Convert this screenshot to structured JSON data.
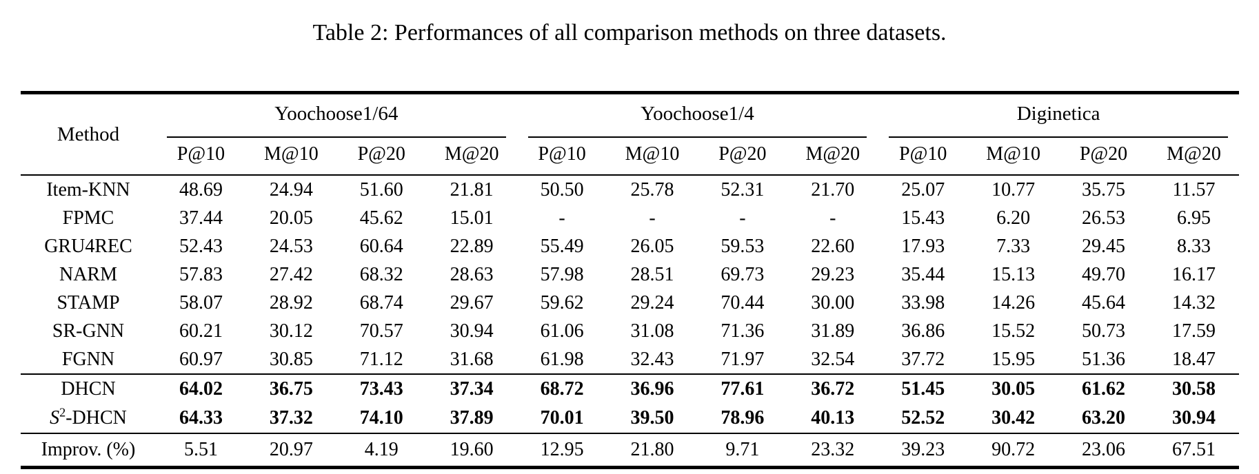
{
  "title": "Table 2: Performances of all comparison methods on three datasets.",
  "table": {
    "method_header": "Method",
    "groups": [
      {
        "label": "Yoochoose1/64"
      },
      {
        "label": "Yoochoose1/4"
      },
      {
        "label": "Diginetica"
      }
    ],
    "metric_headers": [
      "P@10",
      "M@10",
      "P@20",
      "M@20",
      "P@10",
      "M@10",
      "P@20",
      "M@20",
      "P@10",
      "M@10",
      "P@20",
      "M@20"
    ],
    "rows": [
      {
        "method": "Item-KNN",
        "values": [
          "48.69",
          "24.94",
          "51.60",
          "21.81",
          "50.50",
          "25.78",
          "52.31",
          "21.70",
          "25.07",
          "10.77",
          "35.75",
          "11.57"
        ]
      },
      {
        "method": "FPMC",
        "values": [
          "37.44",
          "20.05",
          "45.62",
          "15.01",
          "-",
          "-",
          "-",
          "-",
          "15.43",
          "6.20",
          "26.53",
          "6.95"
        ]
      },
      {
        "method": "GRU4REC",
        "values": [
          "52.43",
          "24.53",
          "60.64",
          "22.89",
          "55.49",
          "26.05",
          "59.53",
          "22.60",
          "17.93",
          "7.33",
          "29.45",
          "8.33"
        ]
      },
      {
        "method": "NARM",
        "values": [
          "57.83",
          "27.42",
          "68.32",
          "28.63",
          "57.98",
          "28.51",
          "69.73",
          "29.23",
          "35.44",
          "15.13",
          "49.70",
          "16.17"
        ]
      },
      {
        "method": "STAMP",
        "values": [
          "58.07",
          "28.92",
          "68.74",
          "29.67",
          "59.62",
          "29.24",
          "70.44",
          "30.00",
          "33.98",
          "14.26",
          "45.64",
          "14.32"
        ]
      },
      {
        "method": "SR-GNN",
        "values": [
          "60.21",
          "30.12",
          "70.57",
          "30.94",
          "61.06",
          "31.08",
          "71.36",
          "31.89",
          "36.86",
          "15.52",
          "50.73",
          "17.59"
        ]
      },
      {
        "method": "FGNN",
        "values": [
          "60.97",
          "30.85",
          "71.12",
          "31.68",
          "61.98",
          "32.43",
          "71.97",
          "32.54",
          "37.72",
          "15.95",
          "51.36",
          "18.47"
        ]
      },
      {
        "method": "DHCN",
        "rule_above": true,
        "bold_values": true,
        "values": [
          "64.02",
          "36.75",
          "73.43",
          "37.34",
          "68.72",
          "36.96",
          "77.61",
          "36.72",
          "51.45",
          "30.05",
          "61.62",
          "30.58"
        ]
      },
      {
        "method": "S²-DHCN",
        "bold_values": true,
        "method_parts": [
          {
            "t": "S",
            "style": "italic"
          },
          {
            "t": "2",
            "style": "sup"
          },
          {
            "t": "-DHCN"
          }
        ],
        "values": [
          "64.33",
          "37.32",
          "74.10",
          "37.89",
          "70.01",
          "39.50",
          "78.96",
          "40.13",
          "52.52",
          "30.42",
          "63.20",
          "30.94"
        ]
      },
      {
        "method": "Improv. (%)",
        "rule_above": true,
        "last_row": true,
        "values": [
          "5.51",
          "20.97",
          "4.19",
          "19.60",
          "12.95",
          "21.80",
          "9.71",
          "23.32",
          "39.23",
          "90.72",
          "23.06",
          "67.51"
        ]
      }
    ]
  }
}
